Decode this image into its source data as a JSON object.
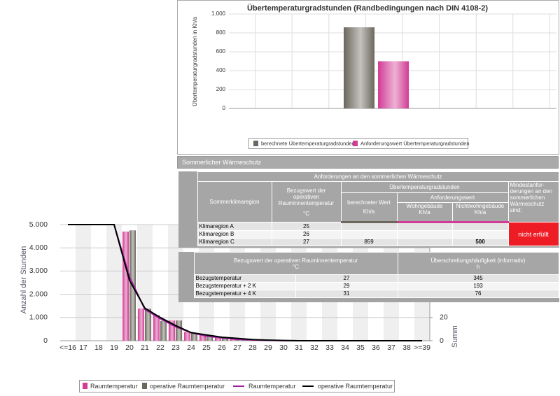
{
  "chart_data": [
    {
      "type": "bar",
      "title": "Übertemperaturgradstunden (Randbedingungen nach DIN 4108-2)",
      "y_label": "Übertemperaturgradstunden in Kh/a",
      "categories": [
        null
      ],
      "series": [
        {
          "name": "berechnete Übertemperaturgradstunden",
          "color": "#6b675c",
          "values": [
            859
          ]
        },
        {
          "name": "Anforderungswert Übertemperaturgradstunden",
          "color": "#d23c95",
          "values": [
            500
          ]
        }
      ],
      "ylim": [
        0,
        1000
      ],
      "yticks": [
        0,
        200,
        400,
        600,
        800,
        {
          "value": 1000,
          "label": "1.000"
        }
      ],
      "grid": true
    },
    {
      "type": "bar",
      "y_label": "Anzahl der Stunden",
      "y2_label": "Summ",
      "categories": [
        "<=16",
        "17",
        "18",
        "19",
        "20",
        "21",
        "22",
        "23",
        "24",
        "25",
        "26",
        "27",
        "28",
        "29",
        "30",
        "31",
        "32",
        "33",
        "34",
        "35",
        "36",
        "37",
        "38",
        ">=39"
      ],
      "series": [
        {
          "name": "Raumtemperatur",
          "type": "bar",
          "color": "#d23c95",
          "values": [
            0,
            0,
            0,
            0,
            4700,
            1380,
            1100,
            870,
            380,
            250,
            170,
            100,
            50,
            20,
            10,
            0,
            0,
            0,
            0,
            0,
            0,
            0,
            0,
            0
          ]
        },
        {
          "name": "operative Raumtemperatur",
          "type": "bar",
          "color": "#6b675c",
          "values": [
            0,
            0,
            0,
            0,
            4750,
            1380,
            850,
            870,
            340,
            230,
            150,
            90,
            40,
            15,
            5,
            0,
            0,
            0,
            0,
            0,
            0,
            0,
            0,
            0
          ]
        },
        {
          "name": "Raumtemperatur",
          "type": "line",
          "axis": "y2",
          "color": "#a020a0",
          "values": [
            100,
            100,
            100,
            100,
            55,
            27,
            19,
            12,
            7,
            4,
            2.5,
            1.2,
            0.6,
            0.3,
            0.1,
            0,
            0,
            0,
            0,
            0,
            0,
            0,
            0,
            0
          ]
        },
        {
          "name": "operative Raumtemperatur",
          "type": "line",
          "axis": "y2",
          "color": "#000000",
          "values": [
            100,
            100,
            100,
            100,
            52,
            28,
            20,
            13,
            7,
            5,
            3,
            2,
            1,
            0.5,
            0.2,
            0,
            0,
            0,
            0,
            0,
            0,
            0,
            0,
            0
          ]
        }
      ],
      "ylim": [
        0,
        5000
      ],
      "yticks": [
        0,
        {
          "value": 1000,
          "label": "1.000"
        },
        {
          "value": 2000,
          "label": "2.000"
        },
        {
          "value": 3000,
          "label": "3.000"
        },
        {
          "value": 4000,
          "label": "4.000"
        },
        {
          "value": 5000,
          "label": "5.000"
        }
      ],
      "y2lim": [
        0,
        100
      ],
      "y2ticks": [
        0,
        20
      ],
      "grid": true
    }
  ],
  "section_header": "Sommerlicher Wärmeschutz",
  "requirements_table": {
    "title": "Anforderungen an den sommerlichen Wärmeschutz",
    "region": "Sommerklimaregion",
    "reference": "Bezugswert der operativen Rauminnentemperatur",
    "reference_unit": "°C",
    "group": "Übertemperaturgradstunden",
    "calculated": "berechneter Wert",
    "calculated_unit": "Kh/a",
    "requirement": "Anforderungswert",
    "residential": "Wohngebäude",
    "residential_unit": "Kh/a",
    "nonresidential": "Nichtwohngebäude",
    "nonresidential_unit": "Kh/a",
    "result_header": "Mindestanfor­derungen an den sommerlichen Wärmeschutz sind:",
    "rows": [
      [
        "Klimaregion A",
        25,
        null,
        null,
        null
      ],
      [
        "Klimaregion B",
        26,
        null,
        null,
        null
      ],
      [
        "Klimaregion C",
        27,
        859,
        null,
        500
      ]
    ],
    "result": "nicht erfüllt"
  },
  "exceedance_table": {
    "reference_header": "Bezugswert der operativen Rauminnentemperatur",
    "reference_unit": "°C",
    "frequency_header": "Überschreitungshäufigkeit (informativ)",
    "frequency_unit": "h",
    "rows": [
      [
        "Bezugstemperatur",
        27,
        345
      ],
      [
        "Bezugstemperatur + 2 K",
        29,
        193
      ],
      [
        "Bezugstemperatur + 4 K",
        31,
        76
      ]
    ]
  }
}
